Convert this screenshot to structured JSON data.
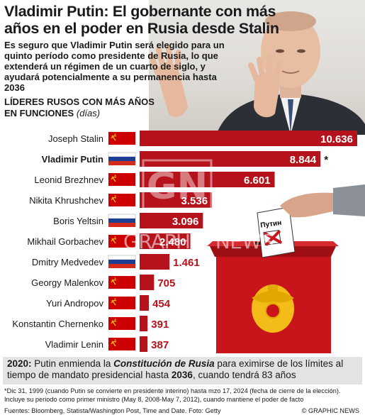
{
  "title": "Vladimir Putin: El gobernante con más años en el poder en Rusia desde Stalin",
  "subtitle": "Es seguro que Vladimir Putin será elegido para un quinto período como presidente de Rusia, lo que extenderá un régimen de un cuarto de siglo, y ayudará potencialmente a su permanencia hasta 2036",
  "chart_heading": "LÍDERES RUSOS CON MÁS AÑOS EN FUNCIONES",
  "chart_unit": "(días)",
  "ballot_text": "Путин",
  "watermark_text": "GRAPHIC NEWS",
  "colors": {
    "bar": "#b5121b",
    "soviet_flag": "#cc0000",
    "soviet_emblem": "#f5c518",
    "russia_white": "#ffffff",
    "russia_blue": "#1c3f94",
    "russia_red": "#d52b1e",
    "ballot_box": "#c8151b"
  },
  "chart_data": {
    "type": "bar",
    "orientation": "horizontal",
    "categories": [
      "Joseph Stalin",
      "Vladimir Putin",
      "Leonid Brezhnev",
      "Nikita Khrushchev",
      "Boris Yeltsin",
      "Mikhail Gorbachev",
      "Dmitry Medvedev",
      "Georgy Malenkov",
      "Yuri Andropov",
      "Konstantin Chernenko",
      "Vladimir Lenin"
    ],
    "values": [
      10636,
      8844,
      6601,
      3536,
      3096,
      2480,
      1461,
      705,
      454,
      391,
      387
    ],
    "value_labels": [
      "10.636",
      "8.844",
      "6.601",
      "3.536",
      "3.096",
      "2.480",
      "1.461",
      "705",
      "454",
      "391",
      "387"
    ],
    "flags": [
      "soviet",
      "russia",
      "soviet",
      "soviet",
      "russia",
      "soviet",
      "russia",
      "soviet",
      "soviet",
      "soviet",
      "soviet"
    ],
    "highlight": "Vladimir Putin",
    "annotations": [
      {
        "category": "Vladimir Putin",
        "text": "*"
      }
    ],
    "xlim": [
      0,
      10636
    ]
  },
  "footer": {
    "year": "2020:",
    "part1": " Putin enmienda la ",
    "emphasis": "Constitución de Rusia",
    "part2": " para eximirse de los límites al tiempo de mandato presidencial hasta ",
    "year2036": "2036",
    "part3": ", cuando tendrá 83 años"
  },
  "notes": "*Dic 31, 1999 (cuando Putin se convierte en presidente interino) hasta mzo 17, 2024 (fecha de cierre de la elección). Incluye su periodo como primer ministro (May 8, 2008-May 7, 2012), cuando mantiene el poder de facto",
  "sources": "Fuentes: Bloomberg, Statista/Washington Post, Time and Date. Foto: Getty",
  "credit": "© GRAPHIC NEWS"
}
